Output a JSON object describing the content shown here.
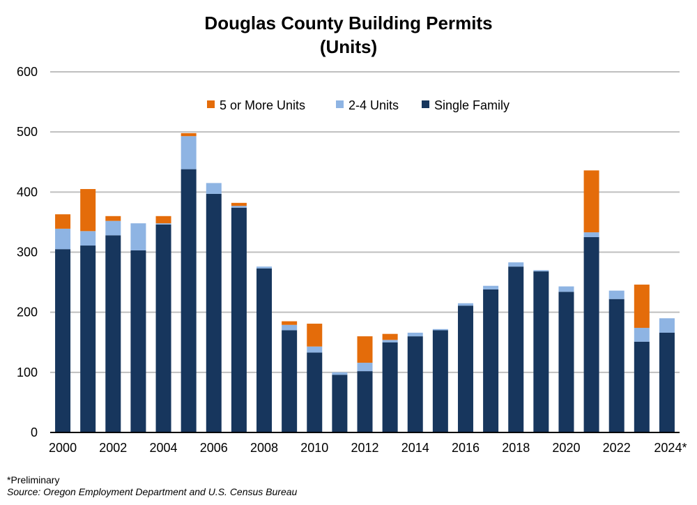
{
  "chart_data": {
    "type": "bar",
    "stacked": true,
    "title": "Douglas County Building Permits",
    "subtitle": "(Units)",
    "xlabel": "",
    "ylabel": "",
    "ylim": [
      0,
      600
    ],
    "yticks": [
      0,
      100,
      200,
      300,
      400,
      500,
      600
    ],
    "grid": true,
    "legend_placement": "top-center",
    "categories": [
      "2000",
      "2001",
      "2002",
      "2003",
      "2004",
      "2005",
      "2006",
      "2007",
      "2008",
      "2009",
      "2010",
      "2011",
      "2012",
      "2013",
      "2014",
      "2015",
      "2016",
      "2017",
      "2018",
      "2019",
      "2020",
      "2021",
      "2022",
      "2023",
      "2024*"
    ],
    "x_tick_labels": [
      "2000",
      "2002",
      "2004",
      "2006",
      "2008",
      "2010",
      "2012",
      "2014",
      "2016",
      "2018",
      "2020",
      "2022",
      "2024*"
    ],
    "series": [
      {
        "name": "Single Family",
        "color": "#17365d",
        "values": [
          305,
          311,
          328,
          303,
          346,
          438,
          397,
          374,
          273,
          170,
          133,
          96,
          102,
          150,
          160,
          170,
          211,
          238,
          276,
          268,
          234,
          325,
          222,
          151,
          166
        ]
      },
      {
        "name": "2-4 Units",
        "color": "#8eb4e3",
        "values": [
          34,
          24,
          24,
          45,
          2,
          55,
          18,
          3,
          3,
          9,
          10,
          4,
          14,
          4,
          6,
          2,
          4,
          6,
          7,
          2,
          9,
          8,
          14,
          23,
          24
        ]
      },
      {
        "name": "5 or More Units",
        "color": "#e46c0a",
        "values": [
          24,
          70,
          8,
          0,
          12,
          5,
          0,
          5,
          0,
          6,
          38,
          0,
          44,
          10,
          0,
          0,
          0,
          0,
          0,
          0,
          0,
          103,
          0,
          72,
          0
        ]
      }
    ],
    "legend_order": [
      "5 or More Units",
      "2-4 Units",
      "Single Family"
    ]
  },
  "footnote": "*Preliminary",
  "source": "Source: Oregon Employment Department and U.S. Census Bureau"
}
